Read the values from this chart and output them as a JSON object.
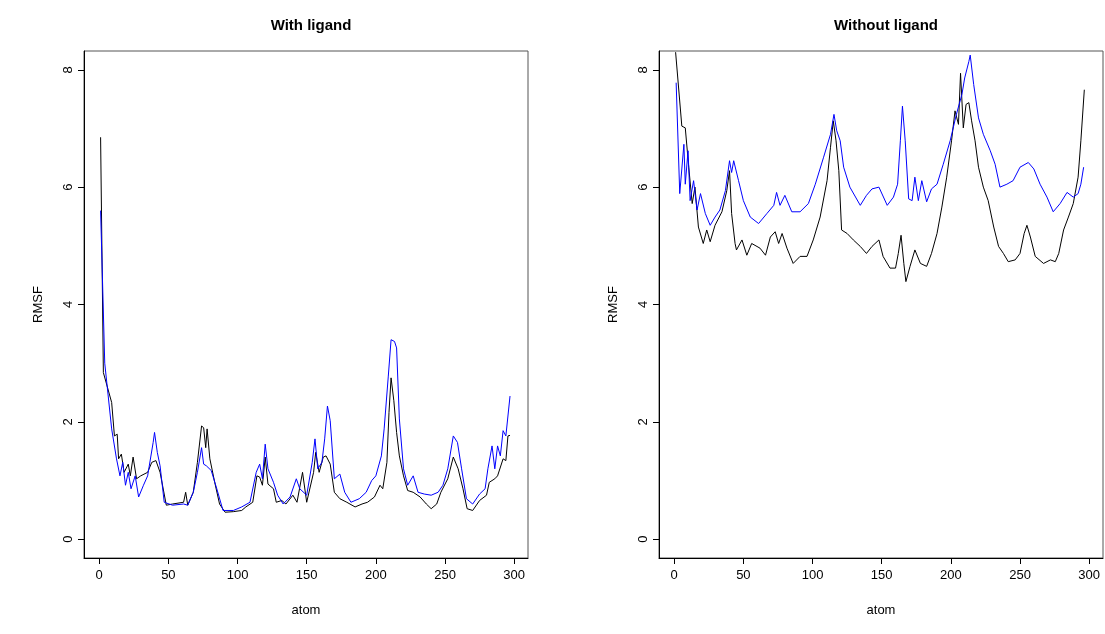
{
  "chart_data": [
    {
      "type": "line",
      "title": "With ligand",
      "xlabel": "atom",
      "ylabel": "RMSF",
      "xlim": [
        -11,
        310
      ],
      "xticks": [
        0,
        50,
        100,
        150,
        200,
        250,
        300
      ],
      "ylim": [
        -0.32,
        8.32
      ],
      "yticks": [
        0,
        2,
        4,
        6,
        8
      ],
      "grid": false,
      "marker": "none",
      "line_style": "solid",
      "series": [
        {
          "color": "#000000",
          "x": [
            1,
            3,
            9,
            11,
            13,
            14,
            16,
            18,
            21,
            22.5,
            24.5,
            27,
            30,
            35,
            38,
            41,
            44,
            48.5,
            53,
            61,
            62.5,
            64,
            68,
            71,
            74,
            75.5,
            77,
            78,
            80,
            83.5,
            87,
            91,
            97,
            103,
            106,
            111,
            114,
            116,
            118,
            120,
            122,
            126,
            128,
            132,
            135,
            140,
            143,
            147,
            150,
            155,
            156.5,
            159,
            162,
            164,
            167,
            170,
            174,
            179,
            185,
            190,
            194,
            199,
            203,
            205,
            208,
            209.5,
            211,
            213,
            215,
            217,
            220,
            223,
            227,
            232,
            236.5,
            240,
            244,
            247,
            252,
            256,
            259.5,
            263,
            266,
            270,
            275,
            280,
            282,
            286,
            288,
            292,
            294,
            295.5,
            297
          ],
          "values": [
            6.85,
            2.84,
            2.33,
            1.76,
            1.79,
            1.37,
            1.45,
            1.14,
            1.28,
            1.08,
            1.4,
            1.03,
            1.08,
            1.14,
            1.31,
            1.34,
            1.14,
            0.58,
            0.6,
            0.63,
            0.8,
            0.58,
            0.8,
            1.31,
            1.93,
            1.9,
            1.56,
            1.88,
            1.37,
            0.97,
            0.6,
            0.46,
            0.47,
            0.49,
            0.55,
            0.63,
            1.08,
            1.06,
            0.92,
            1.4,
            0.94,
            0.86,
            0.63,
            0.66,
            0.6,
            0.75,
            0.63,
            1.14,
            0.63,
            1.14,
            1.48,
            1.14,
            1.4,
            1.42,
            1.28,
            0.8,
            0.69,
            0.63,
            0.55,
            0.6,
            0.63,
            0.72,
            0.92,
            0.86,
            1.31,
            2.16,
            2.75,
            2.36,
            1.82,
            1.42,
            1.08,
            0.83,
            0.8,
            0.72,
            0.6,
            0.52,
            0.6,
            0.8,
            1.03,
            1.4,
            1.2,
            0.86,
            0.52,
            0.49,
            0.66,
            0.75,
            0.97,
            1.03,
            1.08,
            1.37,
            1.34,
            1.76,
            1.77
          ]
        },
        {
          "color": "#0000ff",
          "x": [
            1,
            4,
            9,
            12.5,
            15,
            17,
            19,
            21,
            23,
            26,
            28.5,
            32,
            35,
            39,
            40,
            42,
            44,
            47,
            53,
            61,
            64,
            68,
            71,
            74,
            75.5,
            77.5,
            81,
            85,
            89.5,
            97,
            103,
            109,
            113.5,
            116,
            118,
            120,
            122,
            126,
            129,
            133,
            138,
            142.5,
            145,
            150,
            154,
            156,
            158,
            161,
            163,
            165,
            167,
            170,
            174,
            177.5,
            182,
            188,
            193,
            197,
            200,
            204,
            206,
            209,
            211,
            213.5,
            215,
            217,
            220,
            223,
            227,
            230.5,
            235,
            240,
            245,
            248.5,
            252,
            256,
            259,
            262,
            265.5,
            270,
            275,
            279,
            281,
            284,
            286,
            288,
            290,
            292,
            294,
            297
          ],
          "values": [
            5.6,
            3.0,
            1.88,
            1.37,
            1.08,
            1.31,
            0.92,
            1.14,
            0.86,
            1.08,
            0.72,
            0.92,
            1.08,
            1.65,
            1.82,
            1.48,
            1.25,
            0.63,
            0.58,
            0.6,
            0.58,
            0.8,
            1.14,
            1.56,
            1.28,
            1.25,
            1.17,
            0.86,
            0.49,
            0.49,
            0.55,
            0.63,
            1.14,
            1.28,
            1.03,
            1.62,
            1.2,
            0.97,
            0.75,
            0.6,
            0.72,
            1.03,
            0.86,
            0.75,
            1.31,
            1.71,
            1.2,
            1.31,
            1.71,
            2.27,
            2.02,
            1.03,
            1.11,
            0.8,
            0.63,
            0.69,
            0.8,
            1.0,
            1.08,
            1.42,
            1.88,
            2.78,
            3.4,
            3.37,
            3.26,
            2.05,
            1.2,
            0.92,
            1.08,
            0.8,
            0.77,
            0.75,
            0.8,
            0.92,
            1.2,
            1.76,
            1.65,
            1.2,
            0.69,
            0.6,
            0.77,
            0.86,
            1.2,
            1.59,
            1.2,
            1.59,
            1.42,
            1.85,
            1.76,
            2.44
          ]
        }
      ]
    },
    {
      "type": "line",
      "title": "Without ligand",
      "xlabel": "atom",
      "ylabel": "RMSF",
      "xlim": [
        -11,
        310
      ],
      "xticks": [
        0,
        50,
        100,
        150,
        200,
        250,
        300
      ],
      "ylim": [
        -0.32,
        8.32
      ],
      "yticks": [
        0,
        2,
        4,
        6,
        8
      ],
      "grid": false,
      "marker": "none",
      "line_style": "solid",
      "series": [
        {
          "color": "#000000",
          "x": [
            1,
            5.5,
            8,
            10.5,
            13,
            15,
            17.5,
            21,
            23.5,
            26,
            29.5,
            34.5,
            38,
            40,
            41.5,
            44,
            45,
            49,
            52.5,
            56,
            62,
            66,
            69.5,
            73,
            75.5,
            78,
            81.5,
            86,
            91,
            96,
            100.5,
            105.5,
            110.5,
            113,
            115,
            117,
            119,
            121,
            125,
            129.5,
            134.5,
            139,
            143,
            148,
            151,
            156,
            160,
            162,
            164,
            166,
            167.5,
            170.5,
            174,
            178,
            182.5,
            186,
            190,
            193.5,
            197,
            200.5,
            203,
            205.5,
            207,
            209,
            211,
            213,
            215,
            217.5,
            220,
            223.5,
            227,
            231,
            234.5,
            238,
            241.5,
            246.5,
            250,
            253,
            255,
            257.5,
            261,
            267,
            272,
            275.5,
            278,
            281.5,
            285,
            288.5,
            292,
            294,
            296.5
          ],
          "values": [
            8.3,
            7.04,
            7.01,
            6.34,
            5.72,
            6.0,
            5.32,
            5.04,
            5.27,
            5.07,
            5.35,
            5.58,
            5.94,
            6.28,
            5.55,
            5.04,
            4.93,
            5.1,
            4.84,
            5.04,
            4.96,
            4.84,
            5.15,
            5.24,
            5.04,
            5.21,
            4.96,
            4.7,
            4.82,
            4.82,
            5.1,
            5.49,
            6.11,
            6.68,
            7.13,
            6.79,
            6.28,
            5.27,
            5.21,
            5.1,
            4.99,
            4.87,
            4.99,
            5.1,
            4.82,
            4.62,
            4.62,
            4.87,
            5.18,
            4.7,
            4.39,
            4.65,
            4.93,
            4.7,
            4.65,
            4.87,
            5.21,
            5.66,
            6.17,
            6.79,
            7.3,
            7.07,
            7.94,
            7.01,
            7.41,
            7.44,
            7.13,
            6.79,
            6.34,
            6.0,
            5.77,
            5.32,
            4.99,
            4.87,
            4.73,
            4.76,
            4.87,
            5.21,
            5.35,
            5.15,
            4.82,
            4.7,
            4.76,
            4.73,
            4.87,
            5.27,
            5.49,
            5.72,
            6.17,
            6.79,
            7.66
          ]
        },
        {
          "color": "#0000ff",
          "x": [
            1.4,
            4,
            7,
            8,
            10,
            11.5,
            14,
            16.5,
            19,
            22.5,
            26,
            29.5,
            33,
            37,
            40,
            41.5,
            43,
            46.5,
            50,
            55,
            61,
            67,
            72,
            74,
            76.5,
            80,
            85,
            91,
            97,
            102,
            108,
            113,
            115.5,
            117.5,
            120,
            122.5,
            127,
            134.5,
            139,
            143,
            148,
            154,
            158.5,
            161.5,
            163.5,
            165,
            167,
            169.5,
            172,
            174,
            176.5,
            179,
            182.5,
            186,
            190,
            194.5,
            199.5,
            204,
            208,
            210,
            213,
            214,
            216.5,
            220,
            223.5,
            228.5,
            232,
            235.5,
            240.5,
            245,
            250,
            256,
            260,
            264.5,
            269.5,
            274,
            279,
            284,
            288.5,
            292,
            294,
            296
          ],
          "values": [
            7.78,
            5.89,
            6.73,
            6.05,
            6.62,
            5.77,
            6.11,
            5.61,
            5.89,
            5.55,
            5.35,
            5.49,
            5.61,
            5.94,
            6.45,
            6.25,
            6.45,
            6.11,
            5.77,
            5.49,
            5.38,
            5.55,
            5.69,
            5.91,
            5.69,
            5.86,
            5.58,
            5.58,
            5.72,
            6.05,
            6.51,
            6.9,
            7.24,
            6.96,
            6.79,
            6.34,
            6.0,
            5.69,
            5.86,
            5.97,
            6.0,
            5.69,
            5.83,
            6.05,
            6.79,
            7.38,
            6.79,
            5.8,
            5.77,
            6.17,
            5.77,
            6.11,
            5.75,
            5.97,
            6.05,
            6.39,
            6.79,
            7.24,
            7.58,
            7.86,
            8.14,
            8.25,
            7.75,
            7.18,
            6.9,
            6.62,
            6.39,
            6.0,
            6.05,
            6.11,
            6.34,
            6.42,
            6.31,
            6.05,
            5.83,
            5.58,
            5.72,
            5.91,
            5.83,
            5.89,
            6.05,
            6.34
          ]
        }
      ]
    }
  ]
}
